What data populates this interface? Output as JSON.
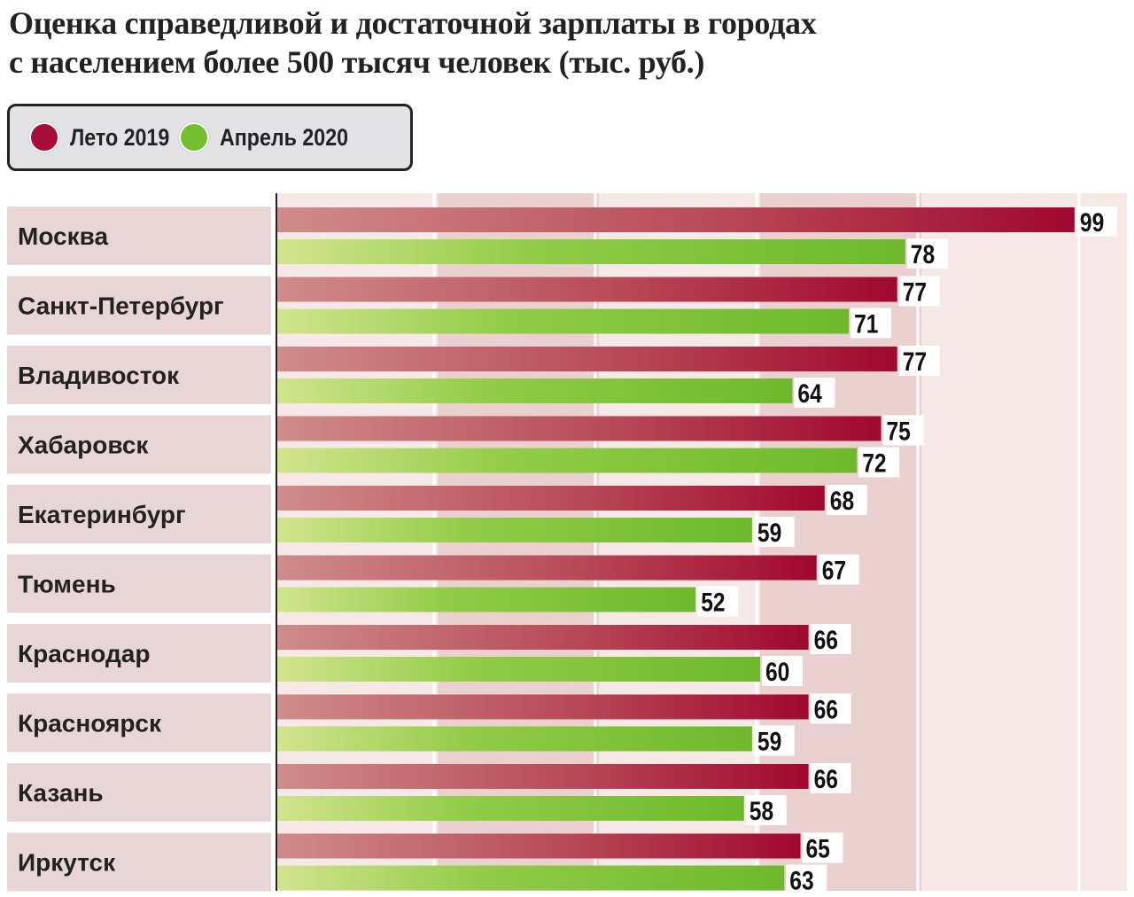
{
  "title_lines": [
    "Оценка справедливой и достаточной зарплаты в городах",
    "с населением более 500 тысяч человек (тыс. руб.)"
  ],
  "legend": [
    {
      "label": "Лето 2019",
      "color": "#a80d3a"
    },
    {
      "label": "Апрель 2020",
      "color": "#74bf2e"
    }
  ],
  "chart_data": {
    "type": "bar",
    "orientation": "horizontal",
    "title": "Оценка справедливой и достаточной зарплаты в городах с населением более 500 тысяч человек (тыс. руб.)",
    "categories": [
      "Москва",
      "Санкт-Петербург",
      "Владивосток",
      "Хабаровск",
      "Екатеринбург",
      "Тюмень",
      "Краснодар",
      "Красноярск",
      "Казань",
      "Иркутск"
    ],
    "series": [
      {
        "name": "Лето 2019",
        "color": "#a80d3a",
        "values": [
          99,
          77,
          77,
          75,
          68,
          67,
          66,
          66,
          66,
          65
        ]
      },
      {
        "name": "Апрель 2020",
        "color": "#74bf2e",
        "values": [
          78,
          71,
          64,
          72,
          59,
          52,
          60,
          59,
          58,
          63
        ]
      }
    ],
    "xlim": [
      0,
      100
    ],
    "data_labels": true,
    "legend_position": "top-left"
  }
}
